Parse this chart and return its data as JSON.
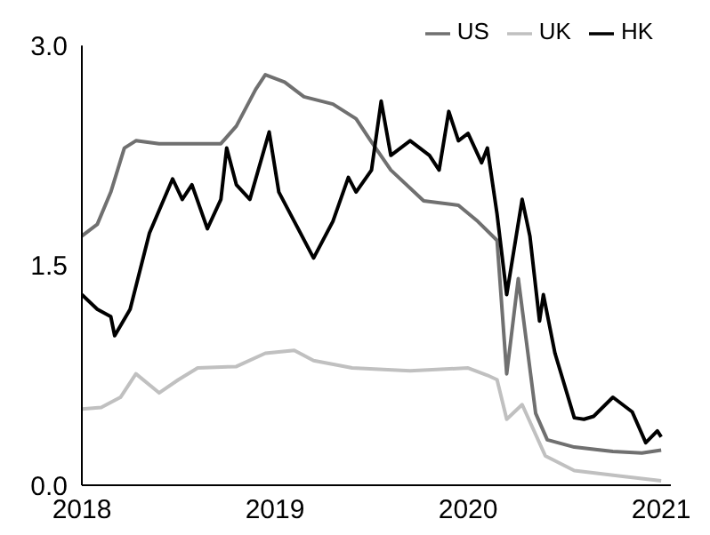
{
  "chart_data": {
    "type": "line",
    "xlim": [
      2018,
      2021.05
    ],
    "xticks": [
      2018,
      2019,
      2020,
      2021
    ],
    "ylim": [
      0,
      3
    ],
    "yticks": [
      {
        "value": 0,
        "label": "0.0"
      },
      {
        "value": 1.5,
        "label": "1.5"
      },
      {
        "value": 3,
        "label": "3.0"
      }
    ],
    "grid": false,
    "legend": "top right",
    "marker": "none",
    "line_style": "solid",
    "series": [
      {
        "name": "US",
        "color": "#707070",
        "x": [
          2018,
          2018.08,
          2018.15,
          2018.22,
          2018.28,
          2018.4,
          2018.55,
          2018.72,
          2018.8,
          2018.9,
          2018.95,
          2019.05,
          2019.15,
          2019.3,
          2019.42,
          2019.49,
          2019.6,
          2019.77,
          2019.95,
          2020.05,
          2020.15,
          2020.2,
          2020.26,
          2020.35,
          2020.41,
          2020.55,
          2020.75,
          2020.9,
          2021
        ],
        "values": [
          1.7,
          1.78,
          2.0,
          2.3,
          2.35,
          2.33,
          2.33,
          2.33,
          2.45,
          2.7,
          2.8,
          2.75,
          2.65,
          2.6,
          2.5,
          2.36,
          2.15,
          1.94,
          1.91,
          1.8,
          1.67,
          0.76,
          1.41,
          0.49,
          0.31,
          0.26,
          0.23,
          0.22,
          0.24
        ]
      },
      {
        "name": "UK",
        "color": "#c0c0c0",
        "x": [
          2018,
          2018.1,
          2018.2,
          2018.28,
          2018.4,
          2018.5,
          2018.6,
          2018.8,
          2018.95,
          2019.1,
          2019.2,
          2019.4,
          2019.7,
          2020.0,
          2020.1,
          2020.15,
          2020.2,
          2020.28,
          2020.4,
          2020.55,
          2020.8,
          2021
        ],
        "values": [
          0.52,
          0.53,
          0.6,
          0.76,
          0.63,
          0.72,
          0.8,
          0.81,
          0.9,
          0.92,
          0.85,
          0.8,
          0.78,
          0.8,
          0.75,
          0.72,
          0.45,
          0.55,
          0.2,
          0.1,
          0.06,
          0.03
        ]
      },
      {
        "name": "HK",
        "color": "#000000",
        "x": [
          2018,
          2018.08,
          2018.15,
          2018.17,
          2018.25,
          2018.35,
          2018.47,
          2018.52,
          2018.57,
          2018.65,
          2018.72,
          2018.75,
          2018.8,
          2018.87,
          2018.97,
          2019.02,
          2019.1,
          2019.2,
          2019.3,
          2019.38,
          2019.42,
          2019.5,
          2019.55,
          2019.6,
          2019.7,
          2019.8,
          2019.85,
          2019.9,
          2019.95,
          2020.0,
          2020.07,
          2020.1,
          2020.15,
          2020.2,
          2020.28,
          2020.32,
          2020.37,
          2020.39,
          2020.45,
          2020.55,
          2020.6,
          2020.65,
          2020.75,
          2020.85,
          2020.92,
          2020.98,
          2021
        ],
        "values": [
          1.3,
          1.2,
          1.15,
          1.02,
          1.2,
          1.72,
          2.09,
          1.95,
          2.05,
          1.75,
          1.95,
          2.3,
          2.05,
          1.95,
          2.41,
          2.0,
          1.8,
          1.55,
          1.8,
          2.1,
          2.0,
          2.15,
          2.62,
          2.25,
          2.35,
          2.25,
          2.15,
          2.55,
          2.35,
          2.4,
          2.2,
          2.3,
          1.85,
          1.3,
          1.95,
          1.7,
          1.12,
          1.3,
          0.9,
          0.46,
          0.45,
          0.47,
          0.6,
          0.5,
          0.29,
          0.37,
          0.33
        ]
      }
    ]
  }
}
